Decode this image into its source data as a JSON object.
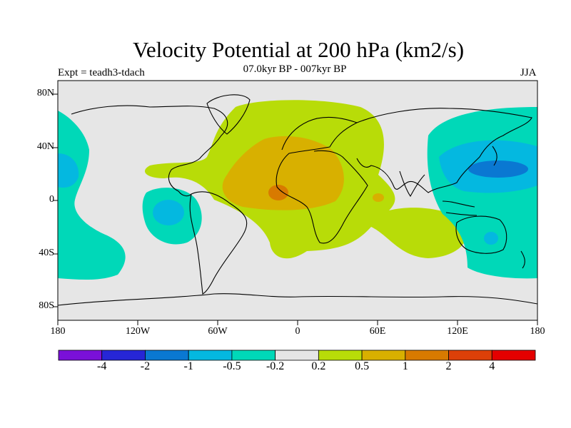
{
  "title": "Velocity Potential at 200 hPa (km2/s)",
  "subtitle": "07.0kyr BP - 007kyr BP",
  "experiment": "Expt = teadh3-tdach",
  "season": "JJA",
  "lat_ticks": [
    {
      "value": 80,
      "label": "80N"
    },
    {
      "value": 40,
      "label": "40N"
    },
    {
      "value": 0,
      "label": "0"
    },
    {
      "value": -40,
      "label": "40S"
    },
    {
      "value": -80,
      "label": "80S"
    }
  ],
  "lon_ticks": [
    {
      "value": -180,
      "label": "180"
    },
    {
      "value": -120,
      "label": "120W"
    },
    {
      "value": -60,
      "label": "60W"
    },
    {
      "value": 0,
      "label": "0"
    },
    {
      "value": 60,
      "label": "60E"
    },
    {
      "value": 120,
      "label": "120E"
    },
    {
      "value": 180,
      "label": "180"
    }
  ],
  "colorbar": {
    "colors": [
      "#7a10d8",
      "#2626d6",
      "#0a78d2",
      "#04b8e0",
      "#00d8b8",
      "#e6e6e6",
      "#b8dc08",
      "#d8b000",
      "#d87a00",
      "#dc4008",
      "#e40000"
    ],
    "labels": [
      "-4",
      "-2",
      "-1",
      "-0.5",
      "-0.2",
      "0.2",
      "0.5",
      "1",
      "2",
      "4"
    ]
  }
}
